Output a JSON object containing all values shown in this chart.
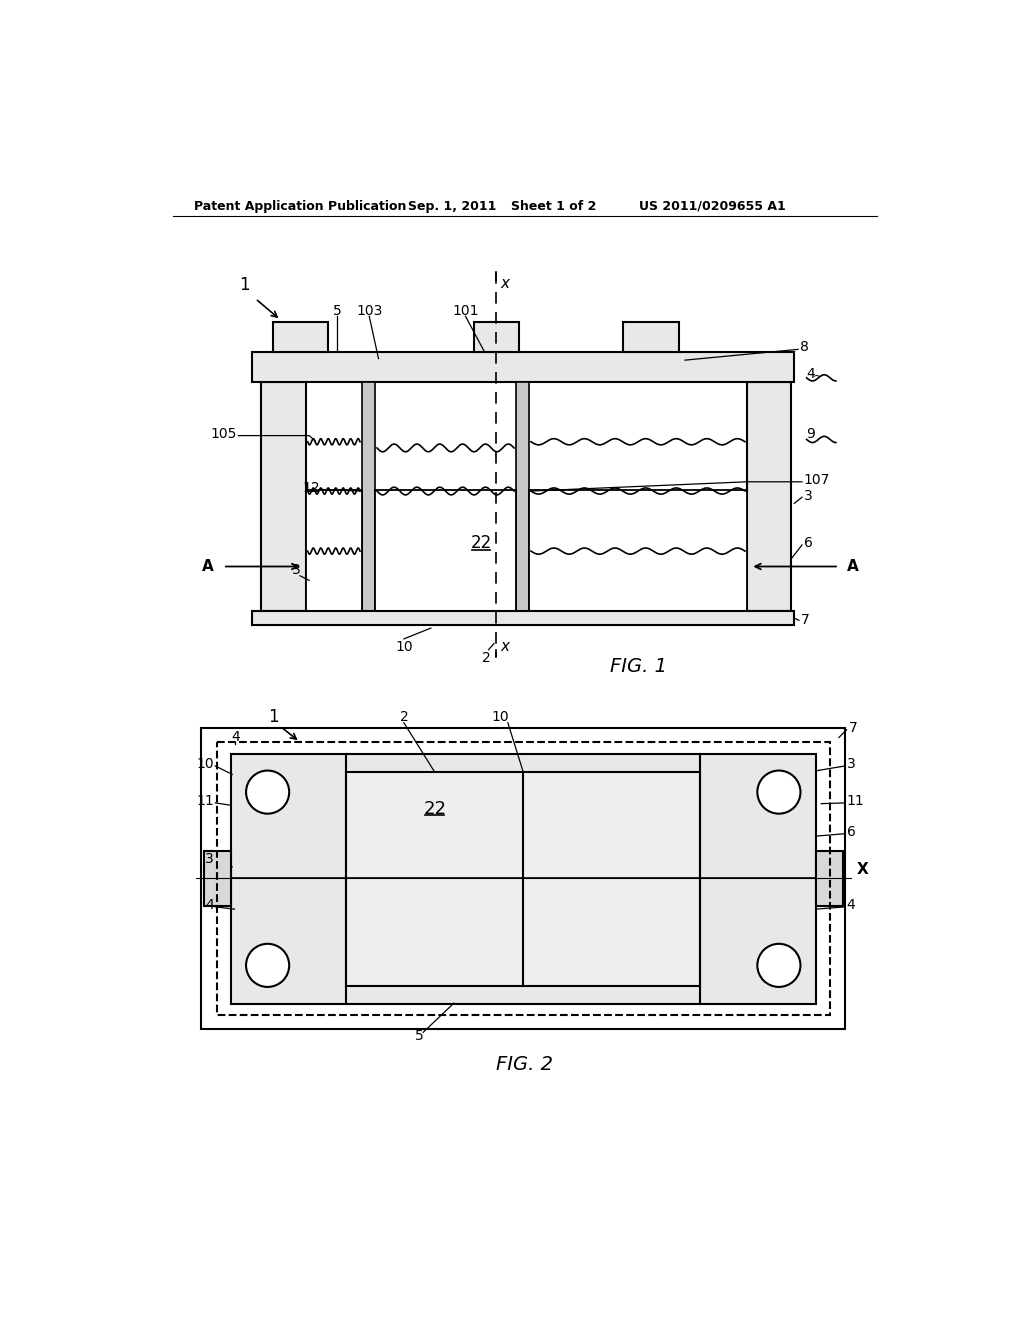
{
  "bg_color": "#ffffff",
  "header_text": "Patent Application Publication",
  "header_date": "Sep. 1, 2011",
  "header_sheet": "Sheet 1 of 2",
  "header_patent": "US 2011/0209655 A1",
  "fig1_label": "FIG. 1",
  "fig2_label": "FIG. 2",
  "line_color": "#000000",
  "gray1": "#e8e8e8",
  "gray2": "#d8d8d8"
}
